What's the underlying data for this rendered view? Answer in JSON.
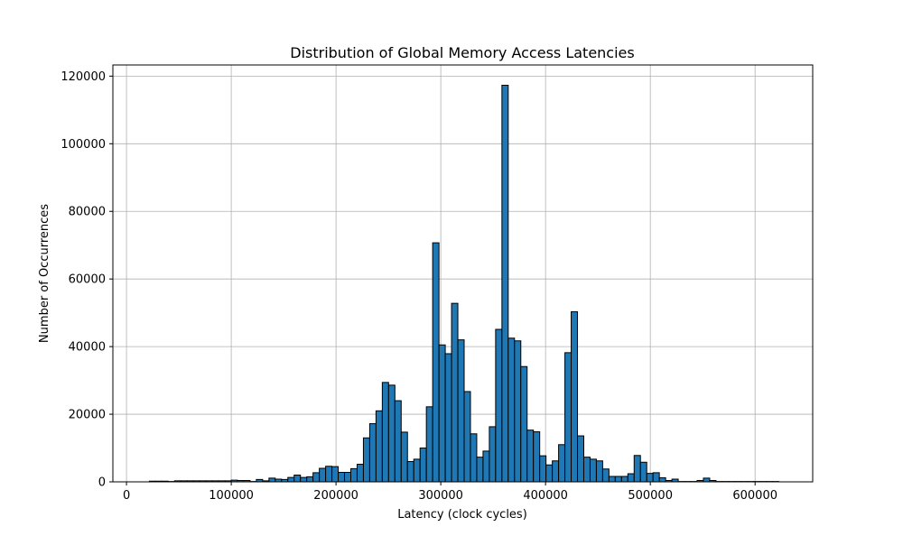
{
  "chart_data": {
    "type": "bar",
    "title": "Distribution of Global Memory Access Latencies",
    "xlabel": "Latency (clock cycles)",
    "ylabel": "Number of Occurrences",
    "xlim": [
      -13000,
      655000
    ],
    "ylim": [
      0,
      123300
    ],
    "x_ticks": [
      0,
      100000,
      200000,
      300000,
      400000,
      500000,
      600000
    ],
    "x_tick_labels": [
      "0",
      "100000",
      "200000",
      "300000",
      "400000",
      "500000",
      "600000"
    ],
    "y_ticks": [
      0,
      20000,
      40000,
      60000,
      80000,
      100000,
      120000
    ],
    "y_tick_labels": [
      "0",
      "20000",
      "40000",
      "60000",
      "80000",
      "100000",
      "120000"
    ],
    "grid": true,
    "bar_color": "#1f77b4",
    "edge_color": "#000000",
    "bin_width": 6010,
    "bins": [
      [
        21800,
        200
      ],
      [
        27810,
        200
      ],
      [
        33820,
        200
      ],
      [
        39830,
        100
      ],
      [
        45840,
        300
      ],
      [
        51850,
        300
      ],
      [
        57860,
        300
      ],
      [
        63870,
        300
      ],
      [
        69880,
        300
      ],
      [
        75890,
        300
      ],
      [
        81900,
        300
      ],
      [
        87910,
        300
      ],
      [
        93920,
        300
      ],
      [
        99930,
        500
      ],
      [
        105940,
        400
      ],
      [
        111950,
        400
      ],
      [
        117960,
        100
      ],
      [
        123970,
        700
      ],
      [
        129980,
        300
      ],
      [
        135990,
        1100
      ],
      [
        142000,
        800
      ],
      [
        148010,
        700
      ],
      [
        154020,
        1300
      ],
      [
        160030,
        2000
      ],
      [
        166040,
        1300
      ],
      [
        172050,
        1500
      ],
      [
        178060,
        2700
      ],
      [
        184070,
        4000
      ],
      [
        190080,
        4600
      ],
      [
        196090,
        4500
      ],
      [
        202100,
        2800
      ],
      [
        208110,
        2800
      ],
      [
        214120,
        3900
      ],
      [
        220130,
        5200
      ],
      [
        226140,
        13000
      ],
      [
        232150,
        17200
      ],
      [
        238160,
        21000
      ],
      [
        244170,
        29400
      ],
      [
        250180,
        28600
      ],
      [
        256190,
        24000
      ],
      [
        262200,
        14700
      ],
      [
        268210,
        6000
      ],
      [
        274220,
        6700
      ],
      [
        280230,
        10000
      ],
      [
        286240,
        22200
      ],
      [
        292250,
        70700
      ],
      [
        298260,
        40500
      ],
      [
        304270,
        37900
      ],
      [
        310280,
        52800
      ],
      [
        316290,
        42000
      ],
      [
        322300,
        26700
      ],
      [
        328310,
        14200
      ],
      [
        334320,
        7300
      ],
      [
        340330,
        9100
      ],
      [
        346340,
        16300
      ],
      [
        352350,
        45100
      ],
      [
        358360,
        117300
      ],
      [
        364370,
        42500
      ],
      [
        370380,
        41700
      ],
      [
        376390,
        34100
      ],
      [
        382400,
        15300
      ],
      [
        388410,
        14800
      ],
      [
        394420,
        7700
      ],
      [
        400430,
        5000
      ],
      [
        406440,
        6200
      ],
      [
        412450,
        11000
      ],
      [
        418460,
        38200
      ],
      [
        424470,
        50300
      ],
      [
        430480,
        13600
      ],
      [
        436490,
        7300
      ],
      [
        442500,
        6700
      ],
      [
        448510,
        6200
      ],
      [
        454520,
        3800
      ],
      [
        460530,
        1600
      ],
      [
        466540,
        1600
      ],
      [
        472550,
        1600
      ],
      [
        478560,
        2400
      ],
      [
        484570,
        7800
      ],
      [
        490580,
        5800
      ],
      [
        496590,
        2500
      ],
      [
        502600,
        2700
      ],
      [
        508610,
        1200
      ],
      [
        514620,
        400
      ],
      [
        520630,
        800
      ],
      [
        526640,
        100
      ],
      [
        532650,
        100
      ],
      [
        538660,
        100
      ],
      [
        544670,
        400
      ],
      [
        550680,
        1100
      ],
      [
        556690,
        400
      ],
      [
        562700,
        100
      ],
      [
        568710,
        100
      ],
      [
        574720,
        100
      ],
      [
        580730,
        100
      ],
      [
        586740,
        100
      ],
      [
        592750,
        100
      ],
      [
        598760,
        100
      ],
      [
        604770,
        100
      ],
      [
        610780,
        100
      ],
      [
        616790,
        100
      ]
    ]
  }
}
